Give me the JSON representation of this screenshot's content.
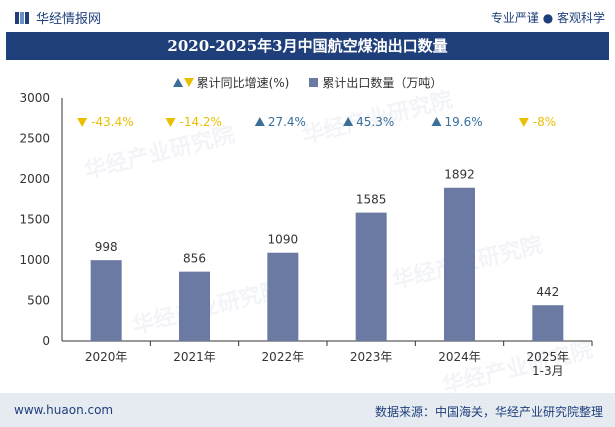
{
  "header": {
    "logo_text": "华经情报网",
    "tagline": "专业严谨 ● 客观科学"
  },
  "watermark": {
    "text": "华经产业研究院",
    "url": "www.huaon.com"
  },
  "footer": {
    "url": "www.huaon.com",
    "source": "数据来源：中国海关，华经产业研究院整理"
  },
  "colors": {
    "brand": "#1f3f7a",
    "bar": "#6b7aa3",
    "up": "#3a6f9a",
    "down": "#e8c000",
    "axis": "#333333",
    "footer_bg": "#e6ebf2"
  },
  "chart_data": {
    "type": "bar",
    "title": "2020-2025年3月中国航空煤油出口数量",
    "categories": [
      "2020年",
      "2021年",
      "2022年",
      "2023年",
      "2024年",
      "2025年\n1-3月"
    ],
    "series": [
      {
        "name": "累计出口数量（万吨）",
        "values": [
          998,
          856,
          1090,
          1585,
          1892,
          442
        ],
        "labels": [
          "998",
          "856",
          "1090",
          "1585",
          "1892",
          "442"
        ]
      },
      {
        "name": "累计同比增速(%)",
        "values": [
          -43.4,
          -14.2,
          27.4,
          45.3,
          19.6,
          -8
        ],
        "labels": [
          "-43.4%",
          "-14.2%",
          "27.4%",
          "45.3%",
          "19.6%",
          "-8%"
        ]
      }
    ],
    "ylim": [
      0,
      3000
    ],
    "yticks": [
      0,
      500,
      1000,
      1500,
      2000,
      2500,
      3000
    ],
    "grid": false,
    "legend_position": "top"
  }
}
